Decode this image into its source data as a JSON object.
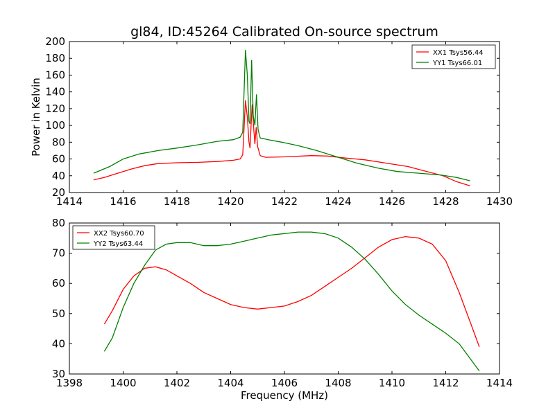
{
  "title": "gl84, ID:45264 Calibrated On-source spectrum",
  "colors": {
    "xx": "#ff0000",
    "yy": "#008000",
    "axes": "#000000",
    "background": "#ffffff"
  },
  "chart_data": [
    {
      "type": "line",
      "ylabel": "Power in Kelvin",
      "xlabel": "",
      "xlim": [
        1414,
        1430
      ],
      "ylim": [
        20,
        200
      ],
      "xticks": [
        1414,
        1416,
        1418,
        1420,
        1422,
        1424,
        1426,
        1428,
        1430
      ],
      "yticks": [
        20,
        40,
        60,
        80,
        100,
        120,
        140,
        160,
        180,
        200
      ],
      "legend_position": "top-right",
      "grid": false,
      "series": [
        {
          "name": "XX1 Tsys56.44",
          "color": "#ff0000",
          "points": [
            [
              1414.9,
              35
            ],
            [
              1415.3,
              38
            ],
            [
              1415.8,
              43
            ],
            [
              1416.3,
              48
            ],
            [
              1416.8,
              52
            ],
            [
              1417.3,
              54.5
            ],
            [
              1418,
              55.5
            ],
            [
              1418.8,
              56
            ],
            [
              1419.5,
              57
            ],
            [
              1420.1,
              58.5
            ],
            [
              1420.35,
              60
            ],
            [
              1420.45,
              65
            ],
            [
              1420.55,
              130
            ],
            [
              1420.62,
              110
            ],
            [
              1420.68,
              80
            ],
            [
              1420.72,
              73
            ],
            [
              1420.76,
              100
            ],
            [
              1420.8,
              125
            ],
            [
              1420.85,
              100
            ],
            [
              1420.9,
              78
            ],
            [
              1420.95,
              98
            ],
            [
              1421.0,
              75
            ],
            [
              1421.1,
              64
            ],
            [
              1421.3,
              62
            ],
            [
              1422,
              62.5
            ],
            [
              1423,
              64
            ],
            [
              1423.6,
              63.5
            ],
            [
              1424.3,
              61
            ],
            [
              1425,
              59
            ],
            [
              1425.8,
              55
            ],
            [
              1426.6,
              51
            ],
            [
              1427.3,
              45
            ],
            [
              1427.9,
              40
            ],
            [
              1428.4,
              33
            ],
            [
              1428.9,
              28
            ]
          ]
        },
        {
          "name": "YY1 Tsys66.01",
          "color": "#008000",
          "points": [
            [
              1414.9,
              43
            ],
            [
              1415.5,
              51
            ],
            [
              1416,
              60
            ],
            [
              1416.6,
              66
            ],
            [
              1417.3,
              70
            ],
            [
              1418,
              73
            ],
            [
              1418.8,
              77
            ],
            [
              1419.5,
              81
            ],
            [
              1420.1,
              83
            ],
            [
              1420.35,
              86
            ],
            [
              1420.45,
              92
            ],
            [
              1420.55,
              190
            ],
            [
              1420.62,
              160
            ],
            [
              1420.68,
              105
            ],
            [
              1420.72,
              102
            ],
            [
              1420.78,
              178
            ],
            [
              1420.84,
              112
            ],
            [
              1420.9,
              100
            ],
            [
              1420.96,
              137
            ],
            [
              1421.02,
              95
            ],
            [
              1421.1,
              85
            ],
            [
              1421.4,
              83
            ],
            [
              1421.9,
              80
            ],
            [
              1422.5,
              76
            ],
            [
              1423.2,
              70
            ],
            [
              1424,
              62
            ],
            [
              1424.7,
              55
            ],
            [
              1425.5,
              49
            ],
            [
              1426.2,
              45
            ],
            [
              1427,
              43
            ],
            [
              1427.8,
              41
            ],
            [
              1428.4,
              38
            ],
            [
              1428.9,
              34
            ]
          ]
        }
      ]
    },
    {
      "type": "line",
      "ylabel": "",
      "xlabel": "Frequency (MHz)",
      "xlim": [
        1398,
        1414
      ],
      "ylim": [
        30,
        80
      ],
      "xticks": [
        1398,
        1400,
        1402,
        1404,
        1406,
        1408,
        1410,
        1412,
        1414
      ],
      "yticks": [
        30,
        40,
        50,
        60,
        70,
        80
      ],
      "legend_position": "top-left",
      "grid": false,
      "series": [
        {
          "name": "XX2 Tsys60.70",
          "color": "#ff0000",
          "points": [
            [
              1399.3,
              46.5
            ],
            [
              1399.6,
              51
            ],
            [
              1400,
              58
            ],
            [
              1400.4,
              62.5
            ],
            [
              1400.8,
              65
            ],
            [
              1401.2,
              65.5
            ],
            [
              1401.6,
              64.5
            ],
            [
              1402,
              62.5
            ],
            [
              1402.5,
              60
            ],
            [
              1403,
              57
            ],
            [
              1403.5,
              55
            ],
            [
              1404,
              53
            ],
            [
              1404.5,
              52
            ],
            [
              1405,
              51.5
            ],
            [
              1405.5,
              52
            ],
            [
              1406,
              52.5
            ],
            [
              1406.5,
              54
            ],
            [
              1407,
              56
            ],
            [
              1407.5,
              59
            ],
            [
              1408,
              62
            ],
            [
              1408.5,
              65
            ],
            [
              1409,
              68.5
            ],
            [
              1409.5,
              72
            ],
            [
              1410,
              74.5
            ],
            [
              1410.5,
              75.5
            ],
            [
              1411,
              75
            ],
            [
              1411.5,
              73
            ],
            [
              1412,
              67.5
            ],
            [
              1412.5,
              57
            ],
            [
              1413,
              45
            ],
            [
              1413.25,
              39
            ]
          ]
        },
        {
          "name": "YY2 Tsys63.44",
          "color": "#008000",
          "points": [
            [
              1399.3,
              37.5
            ],
            [
              1399.6,
              42
            ],
            [
              1400,
              52
            ],
            [
              1400.4,
              60
            ],
            [
              1400.8,
              66
            ],
            [
              1401.2,
              71
            ],
            [
              1401.6,
              73
            ],
            [
              1402,
              73.5
            ],
            [
              1402.5,
              73.5
            ],
            [
              1403,
              72.5
            ],
            [
              1403.5,
              72.5
            ],
            [
              1404,
              73
            ],
            [
              1404.5,
              74
            ],
            [
              1405,
              75
            ],
            [
              1405.5,
              76
            ],
            [
              1406,
              76.5
            ],
            [
              1406.5,
              77
            ],
            [
              1407,
              77
            ],
            [
              1407.5,
              76.5
            ],
            [
              1408,
              75
            ],
            [
              1408.5,
              72
            ],
            [
              1409,
              68
            ],
            [
              1409.5,
              63
            ],
            [
              1410,
              57.5
            ],
            [
              1410.5,
              53
            ],
            [
              1411,
              49.5
            ],
            [
              1411.5,
              46.5
            ],
            [
              1412,
              43.5
            ],
            [
              1412.5,
              40
            ],
            [
              1413,
              34
            ],
            [
              1413.25,
              31
            ]
          ]
        }
      ]
    }
  ]
}
